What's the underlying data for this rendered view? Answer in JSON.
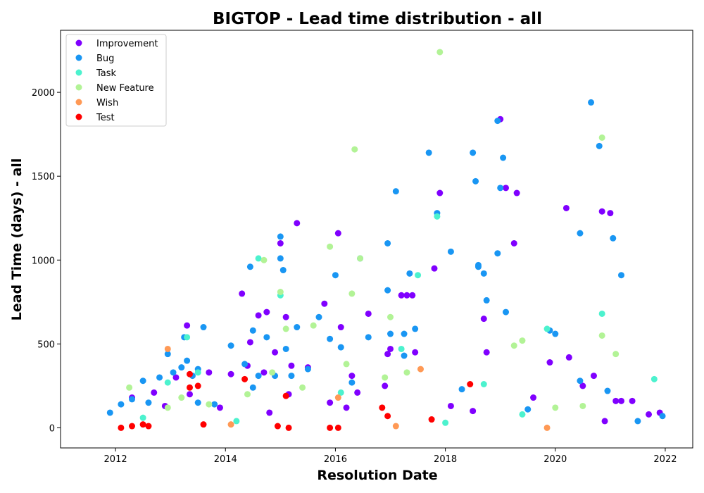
{
  "chart_data": {
    "type": "scatter",
    "title": "BIGTOP - Lead time distribution - all",
    "xlabel": "Resolution Date",
    "ylabel": "Lead Time (days) - all",
    "xlim": [
      2011.0,
      2022.5
    ],
    "ylim": [
      -120,
      2370
    ],
    "xticks": [
      "2012",
      "2014",
      "2016",
      "2018",
      "2020",
      "2022"
    ],
    "xtick_values": [
      2012,
      2014,
      2016,
      2018,
      2020,
      2022
    ],
    "yticks": [
      "0",
      "500",
      "1000",
      "1500",
      "2000"
    ],
    "ytick_values": [
      0,
      500,
      1000,
      1500,
      2000
    ],
    "grid": false,
    "legend_position": "top-left",
    "series": [
      {
        "name": "Improvement",
        "color": "#8000ff",
        "x": [
          2012.3,
          2012.7,
          2012.9,
          2013.1,
          2013.3,
          2013.35,
          2013.7,
          2014.1,
          2014.3,
          2014.4,
          2014.45,
          2014.6,
          2014.7,
          2014.75,
          2014.9,
          2015.0,
          2015.1,
          2015.2,
          2015.3,
          2015.5,
          2015.8,
          2015.9,
          2016.05,
          2016.1,
          2016.3,
          2016.4,
          2016.6,
          2016.9,
          2016.95,
          2017.2,
          2017.3,
          2017.4,
          2017.45,
          2017.8,
          2017.9,
          2018.1,
          2018.7,
          2018.75,
          2019.0,
          2019.1,
          2019.25,
          2019.3,
          2019.9,
          2020.2,
          2020.25,
          2020.5,
          2020.7,
          2020.85,
          2021.0,
          2021.1,
          2021.2,
          2021.4,
          2021.7,
          2013.9,
          2014.8,
          2015.15,
          2016.2,
          2017.0,
          2018.5,
          2019.6,
          2020.9,
          2021.9
        ],
        "y": [
          180,
          210,
          130,
          300,
          610,
          200,
          330,
          320,
          800,
          370,
          510,
          670,
          330,
          690,
          450,
          1100,
          660,
          370,
          1220,
          360,
          740,
          150,
          1160,
          600,
          310,
          210,
          680,
          250,
          440,
          790,
          790,
          790,
          450,
          950,
          1400,
          130,
          650,
          450,
          1840,
          1430,
          1100,
          1400,
          390,
          1310,
          420,
          250,
          310,
          1290,
          1280,
          160,
          160,
          160,
          80,
          120,
          90,
          200,
          120,
          470,
          100,
          180,
          40,
          90
        ]
      },
      {
        "name": "Bug",
        "color": "#1996f3",
        "x": [
          2011.9,
          2012.1,
          2012.3,
          2012.5,
          2012.6,
          2012.8,
          2012.95,
          2013.05,
          2013.2,
          2013.25,
          2013.3,
          2013.4,
          2013.5,
          2013.6,
          2013.8,
          2014.1,
          2014.35,
          2014.45,
          2014.5,
          2014.6,
          2014.75,
          2014.9,
          2015.0,
          2015.05,
          2015.1,
          2015.2,
          2015.3,
          2015.5,
          2015.7,
          2015.9,
          2016.0,
          2016.1,
          2016.3,
          2016.45,
          2016.6,
          2016.95,
          2017.0,
          2017.1,
          2017.25,
          2017.35,
          2017.45,
          2017.7,
          2017.85,
          2018.1,
          2018.3,
          2018.5,
          2018.55,
          2018.6,
          2018.7,
          2018.75,
          2018.95,
          2019.0,
          2019.05,
          2019.1,
          2019.5,
          2019.9,
          2020.0,
          2020.45,
          2020.65,
          2020.8,
          2020.95,
          2021.05,
          2021.2,
          2021.5,
          2021.95,
          2016.95,
          2017.25,
          2018.6,
          2018.95,
          2020.45,
          2015.0,
          2014.5,
          2013.5
        ],
        "y": [
          90,
          140,
          170,
          280,
          150,
          300,
          440,
          330,
          360,
          540,
          400,
          310,
          150,
          600,
          140,
          490,
          380,
          960,
          580,
          310,
          540,
          310,
          1140,
          940,
          470,
          310,
          600,
          350,
          660,
          530,
          910,
          480,
          270,
          1010,
          540,
          820,
          560,
          1410,
          430,
          920,
          590,
          1640,
          1280,
          1050,
          230,
          1640,
          1470,
          970,
          920,
          760,
          1830,
          1430,
          1610,
          690,
          110,
          580,
          560,
          1160,
          1940,
          1680,
          220,
          1130,
          910,
          40,
          70,
          1100,
          560,
          960,
          1040,
          280,
          1010,
          240,
          350
        ]
      },
      {
        "name": "Task",
        "color": "#4cf2ce",
        "x": [
          2012.95,
          2013.3,
          2013.5,
          2014.6,
          2015.0,
          2016.1,
          2017.2,
          2017.5,
          2017.85,
          2018.0,
          2018.7,
          2019.4,
          2019.85,
          2020.85,
          2021.8,
          2012.5,
          2014.2
        ],
        "y": [
          270,
          540,
          330,
          1010,
          790,
          210,
          470,
          910,
          1260,
          30,
          260,
          80,
          590,
          680,
          290,
          60,
          40
        ]
      },
      {
        "name": "New Feature",
        "color": "#b2f396",
        "x": [
          2012.25,
          2012.95,
          2013.2,
          2014.4,
          2014.7,
          2014.85,
          2015.0,
          2015.1,
          2015.4,
          2015.6,
          2015.9,
          2016.2,
          2016.3,
          2016.35,
          2016.45,
          2017.0,
          2017.3,
          2017.9,
          2019.25,
          2019.4,
          2020.0,
          2020.5,
          2020.85,
          2020.85,
          2021.1,
          2013.7,
          2016.9
        ],
        "y": [
          240,
          120,
          180,
          200,
          1000,
          330,
          810,
          590,
          240,
          610,
          1080,
          380,
          800,
          1660,
          1010,
          660,
          330,
          2240,
          490,
          520,
          120,
          130,
          550,
          1730,
          440,
          140,
          300
        ]
      },
      {
        "name": "Wish",
        "color": "#ff9955",
        "x": [
          2012.95,
          2014.1,
          2016.05,
          2017.1,
          2017.55,
          2019.85
        ],
        "y": [
          470,
          20,
          180,
          10,
          350,
          0
        ]
      },
      {
        "name": "Test",
        "color": "#ff0000",
        "x": [
          2012.1,
          2012.3,
          2012.5,
          2012.6,
          2013.35,
          2013.35,
          2013.5,
          2013.6,
          2014.35,
          2014.95,
          2015.1,
          2015.15,
          2015.9,
          2016.05,
          2016.85,
          2016.95,
          2017.75,
          2018.45
        ],
        "y": [
          0,
          10,
          20,
          10,
          320,
          240,
          250,
          20,
          290,
          10,
          190,
          0,
          0,
          0,
          120,
          70,
          50,
          260
        ]
      }
    ]
  }
}
